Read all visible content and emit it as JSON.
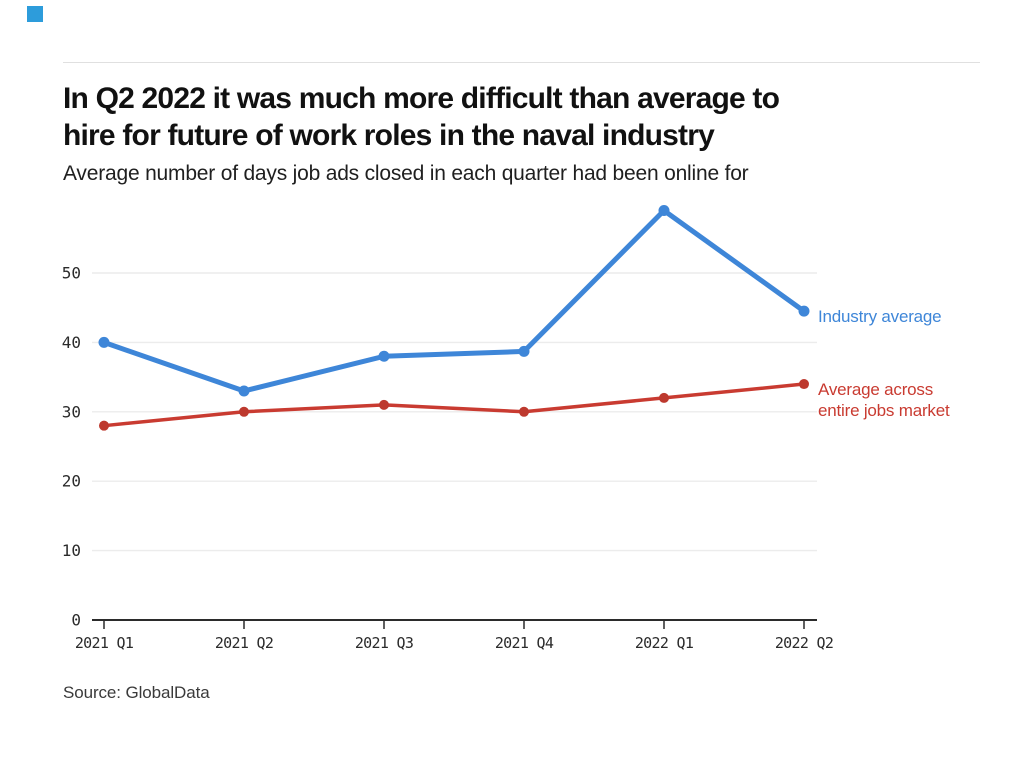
{
  "brand": {
    "color": "#2d9cdb"
  },
  "header": {
    "title": "In Q2 2022 it was much more difficult than average to\nhire for future of work roles in the naval industry",
    "subtitle": "Average number of days job ads closed in each quarter had been online for"
  },
  "chart_data": {
    "type": "line",
    "title": "In Q2 2022 it was much more difficult than average to hire for future of work roles in the naval industry",
    "subtitle": "Average number of days job ads closed in each quarter had been online for",
    "categories": [
      "2021 Q1",
      "2021 Q2",
      "2021 Q3",
      "2021 Q4",
      "2022 Q1",
      "2022 Q2"
    ],
    "series": [
      {
        "name": "Industry average",
        "color": "#3e86d8",
        "marker_color": "#3e86d8",
        "values": [
          40,
          33,
          38,
          38.7,
          59,
          44.5
        ]
      },
      {
        "name": "Average across entire jobs market",
        "color": "#c93b31",
        "marker_color": "#bd392e",
        "values": [
          28,
          30,
          31,
          30,
          32,
          34
        ]
      }
    ],
    "xlabel": "",
    "ylabel": "",
    "ylim": [
      0,
      60
    ],
    "yticks": [
      0,
      10,
      20,
      30,
      40,
      50
    ],
    "grid": true,
    "legend_position": "right-of-last-point"
  },
  "legend": {
    "industry": {
      "label": "Industry average",
      "color": "#3e86d8"
    },
    "market": {
      "label": "Average across\nentire jobs market",
      "color": "#c93b31"
    }
  },
  "footer": {
    "source": "Source: GlobalData"
  }
}
